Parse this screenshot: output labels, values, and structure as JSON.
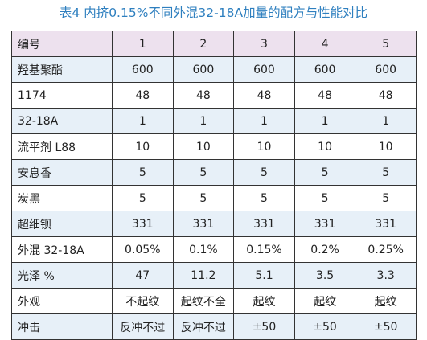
{
  "caption": "表4 内挤0.15%不同外混32-18A加量的配方与性能对比",
  "table": {
    "header": [
      "编号",
      "1",
      "2",
      "3",
      "4",
      "5"
    ],
    "rows": [
      {
        "label": "羟基聚酯",
        "values": [
          "600",
          "600",
          "600",
          "600",
          "600"
        ]
      },
      {
        "label": "1174",
        "values": [
          "48",
          "48",
          "48",
          "48",
          "48"
        ]
      },
      {
        "label": "32-18A",
        "values": [
          "1",
          "1",
          "1",
          "1",
          "1"
        ]
      },
      {
        "label": "流平剂 L88",
        "values": [
          "10",
          "10",
          "10",
          "10",
          "10"
        ]
      },
      {
        "label": "安息香",
        "values": [
          "5",
          "5",
          "5",
          "5",
          "5"
        ]
      },
      {
        "label": "炭黑",
        "values": [
          "5",
          "5",
          "5",
          "5",
          "5"
        ]
      },
      {
        "label": "超细钡",
        "values": [
          "331",
          "331",
          "331",
          "331",
          "331"
        ]
      },
      {
        "label": "外混 32-18A",
        "values": [
          "0.05%",
          "0.1%",
          "0.15%",
          "0.2%",
          "0.25%"
        ]
      },
      {
        "label": "光泽 %",
        "values": [
          "47",
          "11.2",
          "5.1",
          "3.5",
          "3.3"
        ]
      },
      {
        "label": "外观",
        "values": [
          "不起纹",
          "起纹不全",
          "起纹",
          "起纹",
          "起纹"
        ]
      },
      {
        "label": "冲击",
        "values": [
          "反冲不过",
          "反冲不过",
          "±50",
          "±50",
          "±50"
        ]
      }
    ]
  },
  "colors": {
    "caption": "#2e7fbf",
    "header_bg": "#ede1ee",
    "stripe_bg": "#e7f0f8",
    "border": "#333333"
  }
}
